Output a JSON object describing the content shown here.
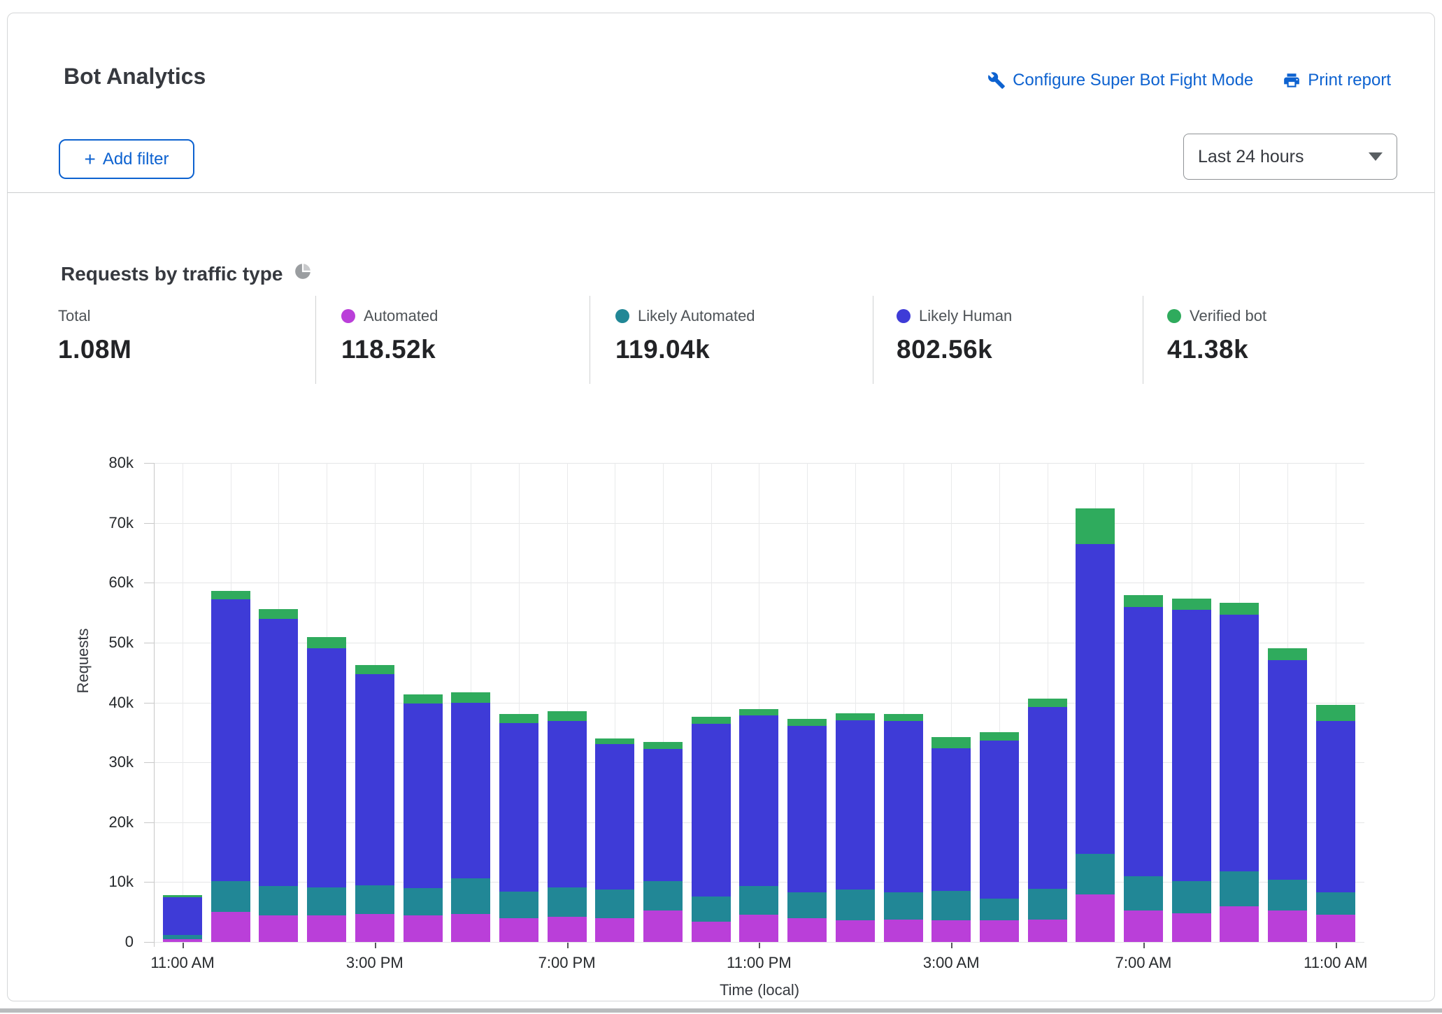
{
  "header": {
    "title": "Bot Analytics",
    "configure_link": "Configure Super Bot Fight Mode",
    "print_link": "Print report",
    "add_filter_label": "Add filter",
    "add_filter_plus": "+",
    "time_range_selected": "Last 24 hours"
  },
  "section": {
    "heading": "Requests by traffic type"
  },
  "stats": [
    {
      "label": "Total",
      "value": "1.08M",
      "color": null
    },
    {
      "label": "Automated",
      "value": "118.52k",
      "color": "#ba3fd9"
    },
    {
      "label": "Likely Automated",
      "value": "119.04k",
      "color": "#218796"
    },
    {
      "label": "Likely Human",
      "value": "802.56k",
      "color": "#3e3bd7"
    },
    {
      "label": "Verified bot",
      "value": "41.38k",
      "color": "#2fab5d"
    }
  ],
  "colors": {
    "link_blue": "#0d62d0",
    "automated": "#ba3fd9",
    "likely_automated": "#218796",
    "likely_human": "#3e3bd7",
    "verified_bot": "#2fab5d",
    "grid": "#e5e6e7",
    "icon_gray": "#9a9da0"
  },
  "chart_data": {
    "type": "bar",
    "stacked": true,
    "title": "Requests by traffic type",
    "xlabel": "Time (local)",
    "ylabel": "Requests",
    "units": "thousands of requests",
    "ylim_k": [
      0,
      80
    ],
    "y_ticks": [
      "80k",
      "70k",
      "60k",
      "50k",
      "40k",
      "30k",
      "20k",
      "10k",
      "0"
    ],
    "x_tick_labels": [
      "11:00 AM",
      "3:00 PM",
      "7:00 PM",
      "11:00 PM",
      "3:00 AM",
      "7:00 AM",
      "11:00 AM"
    ],
    "x_tick_indices": [
      0,
      4,
      8,
      12,
      16,
      20,
      24
    ],
    "categories": [
      "11:00 AM",
      "12:00 PM",
      "1:00 PM",
      "2:00 PM",
      "3:00 PM",
      "4:00 PM",
      "5:00 PM",
      "6:00 PM",
      "7:00 PM",
      "8:00 PM",
      "9:00 PM",
      "10:00 PM",
      "11:00 PM",
      "12:00 AM",
      "1:00 AM",
      "2:00 AM",
      "3:00 AM",
      "4:00 AM",
      "5:00 AM",
      "6:00 AM",
      "7:00 AM",
      "8:00 AM",
      "9:00 AM",
      "10:00 AM",
      "11:00 AM"
    ],
    "legend_position": "top",
    "grid": true,
    "series": [
      {
        "name": "Automated",
        "color": "#ba3fd9",
        "values_k": [
          0.5,
          5.0,
          4.4,
          4.4,
          4.7,
          4.4,
          4.7,
          4.0,
          4.2,
          4.0,
          5.2,
          3.4,
          4.6,
          4.0,
          3.6,
          3.7,
          3.6,
          3.6,
          3.7,
          8.0,
          5.3,
          4.8,
          5.9,
          5.3,
          4.6
        ]
      },
      {
        "name": "Likely Automated",
        "color": "#218796",
        "values_k": [
          0.7,
          5.2,
          5.0,
          4.7,
          4.8,
          4.6,
          5.9,
          4.4,
          4.9,
          4.8,
          5.0,
          4.2,
          4.7,
          4.3,
          5.2,
          4.6,
          4.9,
          3.6,
          5.2,
          6.7,
          5.7,
          5.4,
          5.9,
          5.1,
          3.7
        ]
      },
      {
        "name": "Likely Human",
        "color": "#3e3bd7",
        "values_k": [
          6.3,
          47.0,
          44.6,
          40.0,
          35.2,
          30.8,
          29.4,
          28.2,
          27.8,
          24.2,
          22.0,
          28.8,
          28.5,
          27.8,
          28.2,
          28.6,
          23.8,
          26.4,
          30.4,
          51.8,
          45.0,
          45.3,
          42.9,
          36.7,
          28.6
        ]
      },
      {
        "name": "Verified bot",
        "color": "#2fab5d",
        "values_k": [
          0.3,
          1.4,
          1.6,
          1.8,
          1.5,
          1.5,
          1.7,
          1.5,
          1.7,
          1.0,
          1.2,
          1.2,
          1.1,
          1.2,
          1.2,
          1.2,
          1.9,
          1.4,
          1.3,
          5.9,
          1.9,
          1.9,
          2.0,
          1.9,
          2.7
        ]
      }
    ]
  }
}
